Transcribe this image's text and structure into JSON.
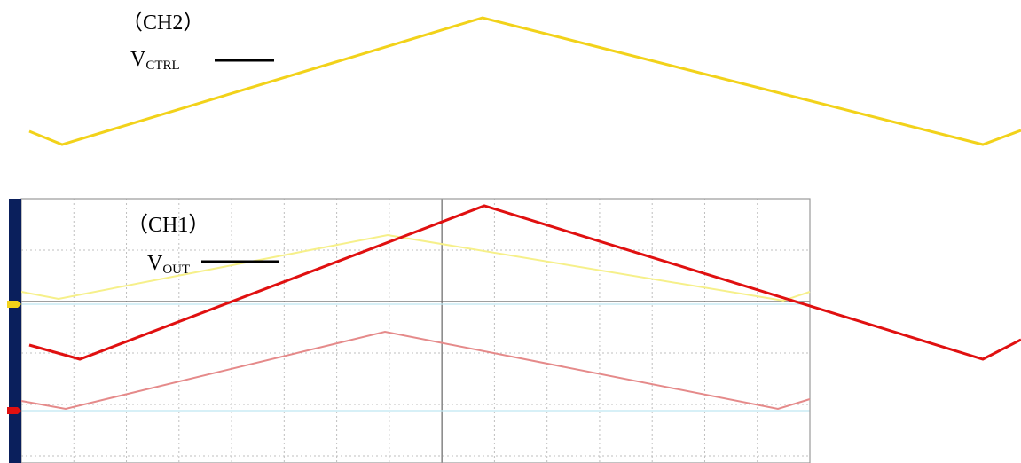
{
  "labels": {
    "ch2": {
      "channel": "（CH2）",
      "signal": "V",
      "subscript": "CTRL"
    },
    "ch1": {
      "channel": "（CH1）",
      "signal": "V",
      "subscript": "OUT"
    }
  },
  "colors": {
    "ctrl_waveform": "#f2d21a",
    "out_waveform": "#e01010",
    "scope_ctrl_trace": "#f6f08a",
    "scope_out_trace": "#e58a8a",
    "scope_side_bar": "#0a1f5c",
    "scope_grid": "#bfbfbf",
    "scope_border": "#9a9a9a",
    "scope_ref_line": "#bfe6f2",
    "legend_line": "#000000"
  }
}
